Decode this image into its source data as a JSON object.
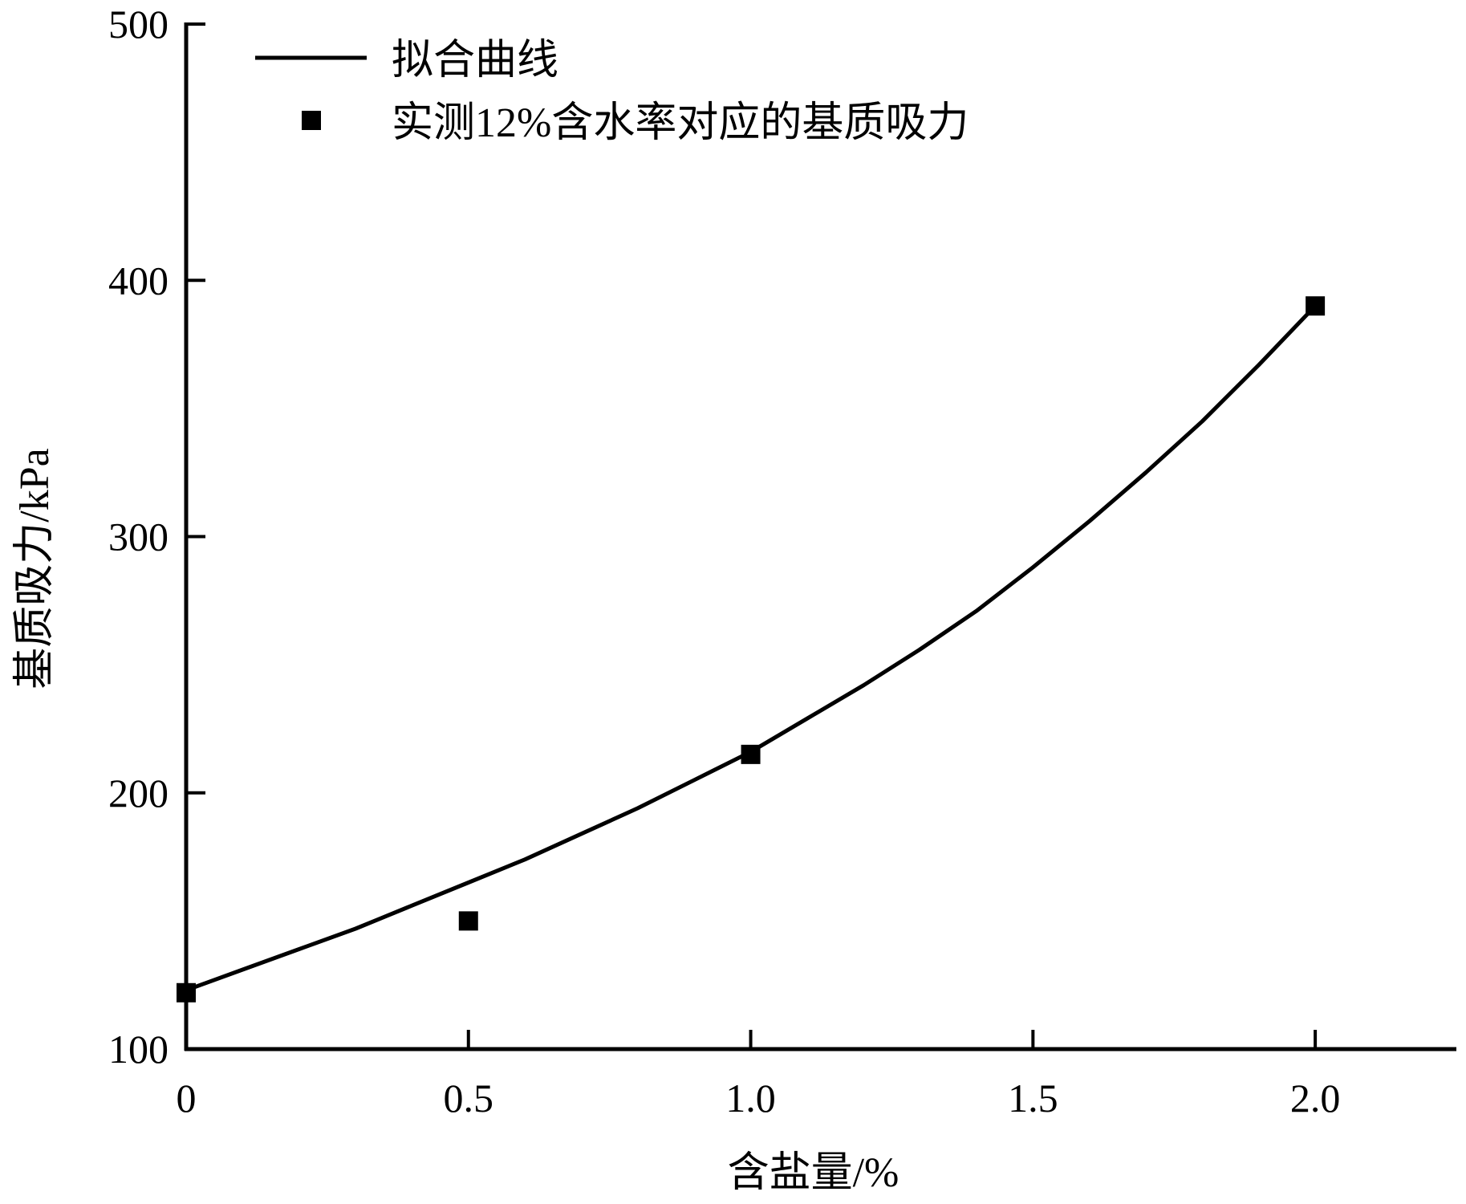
{
  "chart_data": {
    "type": "scatter",
    "title": "",
    "xlabel": "含盐量/%",
    "ylabel": "基质吸力/kPa",
    "xlim": [
      0,
      2.25
    ],
    "ylim": [
      100,
      500
    ],
    "x_ticks": [
      0,
      0.5,
      1.0,
      1.5,
      2.0
    ],
    "x_tick_labels": [
      "0",
      "0.5",
      "1.0",
      "1.5",
      "2.0"
    ],
    "y_ticks": [
      100,
      200,
      300,
      400,
      500
    ],
    "y_tick_labels": [
      "100",
      "200",
      "300",
      "400",
      "500"
    ],
    "grid": false,
    "legend_position": "top-left",
    "series": [
      {
        "name": "拟合曲线",
        "kind": "line",
        "color": "#000000",
        "x": [
          0,
          0.1,
          0.2,
          0.3,
          0.4,
          0.5,
          0.6,
          0.7,
          0.8,
          0.9,
          1.0,
          1.1,
          1.2,
          1.3,
          1.4,
          1.5,
          1.6,
          1.7,
          1.8,
          1.9,
          2.0
        ],
        "y": [
          123,
          131,
          139,
          147,
          156,
          165,
          174,
          184,
          194,
          205,
          216,
          229,
          242,
          256,
          271,
          288,
          306,
          325,
          345,
          367,
          390
        ]
      },
      {
        "name": "实测12%含水率对应的基质吸力",
        "kind": "scatter",
        "marker": "square",
        "color": "#000000",
        "x": [
          0,
          0.5,
          1.0,
          2.0
        ],
        "y": [
          122,
          150,
          215,
          390
        ]
      }
    ]
  }
}
